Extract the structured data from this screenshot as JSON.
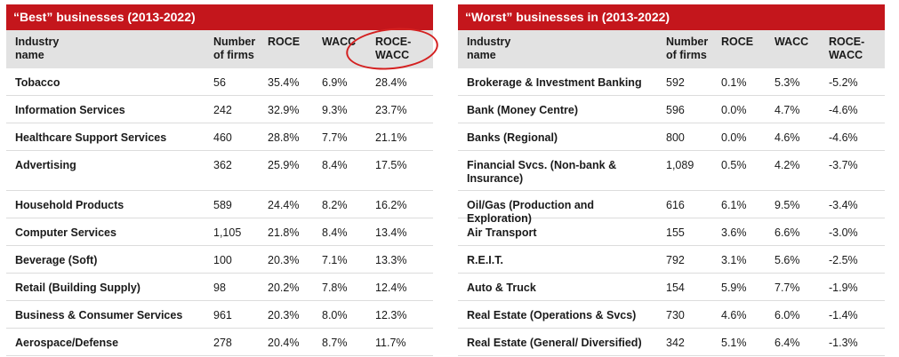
{
  "best": {
    "title": "“Best” businesses (2013-2022)",
    "headers": {
      "industry": [
        "Industry",
        "name"
      ],
      "firms": [
        "Number",
        "of firms"
      ],
      "roce": [
        "ROCE"
      ],
      "wacc": [
        "WACC"
      ],
      "diff": [
        "ROCE-",
        "WACC"
      ]
    },
    "rows": [
      {
        "name": [
          "Tobacco"
        ],
        "firms": "56",
        "roce": "35.4%",
        "wacc": "6.9%",
        "diff": "28.4%"
      },
      {
        "name": [
          "Information Services"
        ],
        "firms": "242",
        "roce": "32.9%",
        "wacc": "9.3%",
        "diff": "23.7%"
      },
      {
        "name": [
          "Healthcare Support Services"
        ],
        "firms": "460",
        "roce": "28.8%",
        "wacc": "7.7%",
        "diff": "21.1%"
      },
      {
        "name": [
          "Advertising"
        ],
        "firms": "362",
        "roce": "25.9%",
        "wacc": "8.4%",
        "diff": "17.5%"
      },
      {
        "name": [
          "Household Products"
        ],
        "firms": "589",
        "roce": "24.4%",
        "wacc": "8.2%",
        "diff": "16.2%"
      },
      {
        "name": [
          "Computer Services"
        ],
        "firms": "1,105",
        "roce": "21.8%",
        "wacc": "8.4%",
        "diff": "13.4%"
      },
      {
        "name": [
          "Beverage (Soft)"
        ],
        "firms": "100",
        "roce": "20.3%",
        "wacc": "7.1%",
        "diff": "13.3%"
      },
      {
        "name": [
          "Retail (Building Supply)"
        ],
        "firms": "98",
        "roce": "20.2%",
        "wacc": "7.8%",
        "diff": "12.4%"
      },
      {
        "name": [
          "Business & Consumer Services"
        ],
        "firms": "961",
        "roce": "20.3%",
        "wacc": "8.0%",
        "diff": "12.3%"
      },
      {
        "name": [
          "Aerospace/Defense"
        ],
        "firms": "278",
        "roce": "20.4%",
        "wacc": "8.7%",
        "diff": "11.7%"
      }
    ]
  },
  "worst": {
    "title": "“Worst” businesses in (2013-2022)",
    "headers": {
      "industry": [
        "Industry",
        "name"
      ],
      "firms": [
        "Number",
        "of firms"
      ],
      "roce": [
        "ROCE"
      ],
      "wacc": [
        "WACC"
      ],
      "diff": [
        "ROCE-",
        "WACC"
      ]
    },
    "rows": [
      {
        "name": [
          "Brokerage & Investment Banking"
        ],
        "firms": "592",
        "roce": "0.1%",
        "wacc": "5.3%",
        "diff": "-5.2%"
      },
      {
        "name": [
          "Bank (Money Centre)"
        ],
        "firms": "596",
        "roce": "0.0%",
        "wacc": "4.7%",
        "diff": "-4.6%"
      },
      {
        "name": [
          "Banks (Regional)"
        ],
        "firms": "800",
        "roce": "0.0%",
        "wacc": "4.6%",
        "diff": "-4.6%"
      },
      {
        "name": [
          "Financial Svcs. (Non-bank &",
          "Insurance)"
        ],
        "firms": "1,089",
        "roce": "0.5%",
        "wacc": "4.2%",
        "diff": "-3.7%"
      },
      {
        "name": [
          "Oil/Gas (Production and Exploration)"
        ],
        "firms": "616",
        "roce": "6.1%",
        "wacc": "9.5%",
        "diff": "-3.4%"
      },
      {
        "name": [
          "Air Transport"
        ],
        "firms": "155",
        "roce": "3.6%",
        "wacc": "6.6%",
        "diff": "-3.0%"
      },
      {
        "name": [
          "R.E.I.T."
        ],
        "firms": "792",
        "roce": "3.1%",
        "wacc": "5.6%",
        "diff": "-2.5%"
      },
      {
        "name": [
          "Auto & Truck"
        ],
        "firms": "154",
        "roce": "5.9%",
        "wacc": "7.7%",
        "diff": "-1.9%"
      },
      {
        "name": [
          "Real Estate (Operations & Svcs)"
        ],
        "firms": "730",
        "roce": "4.6%",
        "wacc": "6.0%",
        "diff": "-1.4%"
      },
      {
        "name": [
          "Real Estate (General/ Diversified)"
        ],
        "firms": "342",
        "roce": "5.1%",
        "wacc": "6.4%",
        "diff": "-1.3%"
      }
    ]
  },
  "colors": {
    "title_bar": "#c4161c",
    "header_bg": "#e2e2e2",
    "highlight_circle": "#d42020"
  }
}
